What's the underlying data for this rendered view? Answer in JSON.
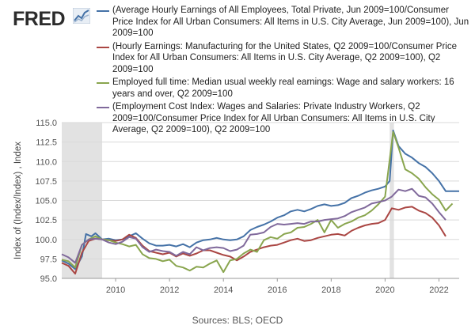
{
  "brand": {
    "name": "FRED",
    "logo_icon": "fred-chart-logo-icon"
  },
  "source": "Sources: BLS; OECD",
  "chart_data": {
    "type": "line",
    "title": "",
    "xlabel": "",
    "ylabel": "Index of (Index/Index) , Index",
    "xlim": [
      2008.0,
      2022.75
    ],
    "ylim": [
      95.0,
      115.0
    ],
    "yticks": [
      "95.0",
      "97.5",
      "100.0",
      "102.5",
      "105.0",
      "107.5",
      "110.0",
      "112.5",
      "115.0"
    ],
    "xticks": [
      "2010",
      "2012",
      "2014",
      "2016",
      "2018",
      "2020",
      "2022"
    ],
    "grid": true,
    "legend_position": "top",
    "recessions": [
      [
        2008.0,
        2009.5
      ],
      [
        2020.17,
        2020.33
      ]
    ],
    "series": [
      {
        "name": "(Average Hourly Earnings of All Employees, Total Private, Jun 2009=100/Consumer Price Index for All Urban Consumers: All Items in U.S. City Average, Jun 2009=100), Jun 2009=100",
        "color": "#4572a7",
        "points": [
          [
            2008.0,
            97.3
          ],
          [
            2008.25,
            96.9
          ],
          [
            2008.5,
            96.2
          ],
          [
            2008.75,
            97.8
          ],
          [
            2008.9,
            100.7
          ],
          [
            2009.1,
            100.4
          ],
          [
            2009.25,
            100.8
          ],
          [
            2009.5,
            100.0
          ],
          [
            2009.75,
            100.1
          ],
          [
            2010.0,
            99.9
          ],
          [
            2010.25,
            100.0
          ],
          [
            2010.5,
            100.4
          ],
          [
            2010.75,
            100.8
          ],
          [
            2011.0,
            100.1
          ],
          [
            2011.25,
            99.5
          ],
          [
            2011.5,
            99.2
          ],
          [
            2011.75,
            99.2
          ],
          [
            2012.0,
            99.3
          ],
          [
            2012.25,
            99.1
          ],
          [
            2012.5,
            99.4
          ],
          [
            2012.75,
            99.0
          ],
          [
            2013.0,
            99.6
          ],
          [
            2013.25,
            99.9
          ],
          [
            2013.5,
            100.0
          ],
          [
            2013.75,
            100.2
          ],
          [
            2014.0,
            100.0
          ],
          [
            2014.25,
            99.9
          ],
          [
            2014.5,
            100.0
          ],
          [
            2014.75,
            100.4
          ],
          [
            2015.0,
            101.2
          ],
          [
            2015.25,
            101.6
          ],
          [
            2015.5,
            101.9
          ],
          [
            2015.75,
            102.3
          ],
          [
            2016.0,
            102.8
          ],
          [
            2016.25,
            103.1
          ],
          [
            2016.5,
            103.6
          ],
          [
            2016.75,
            103.8
          ],
          [
            2017.0,
            103.6
          ],
          [
            2017.25,
            103.9
          ],
          [
            2017.5,
            104.3
          ],
          [
            2017.75,
            104.5
          ],
          [
            2018.0,
            104.3
          ],
          [
            2018.25,
            104.4
          ],
          [
            2018.5,
            104.7
          ],
          [
            2018.75,
            105.3
          ],
          [
            2019.0,
            105.6
          ],
          [
            2019.25,
            106.0
          ],
          [
            2019.5,
            106.3
          ],
          [
            2019.75,
            106.5
          ],
          [
            2020.0,
            106.8
          ],
          [
            2020.17,
            107.5
          ],
          [
            2020.3,
            114.0
          ],
          [
            2020.5,
            112.0
          ],
          [
            2020.75,
            111.0
          ],
          [
            2021.0,
            110.5
          ],
          [
            2021.25,
            109.8
          ],
          [
            2021.5,
            109.3
          ],
          [
            2021.75,
            108.5
          ],
          [
            2022.0,
            107.5
          ],
          [
            2022.25,
            106.2
          ],
          [
            2022.5,
            106.2
          ],
          [
            2022.75,
            106.2
          ]
        ]
      },
      {
        "name": "(Hourly Earnings: Manufacturing for the United States, Q2 2009=100/Consumer Price Index for All Urban Consumers: All Items in U.S. City Average, Q2 2009=100), Q2 2009=100",
        "color": "#aa4643",
        "points": [
          [
            2008.0,
            97.0
          ],
          [
            2008.25,
            96.6
          ],
          [
            2008.5,
            95.6
          ],
          [
            2008.75,
            98.3
          ],
          [
            2009.0,
            99.8
          ],
          [
            2009.25,
            100.1
          ],
          [
            2009.5,
            100.0
          ],
          [
            2009.75,
            99.9
          ],
          [
            2010.0,
            99.8
          ],
          [
            2010.25,
            100.0
          ],
          [
            2010.5,
            100.6
          ],
          [
            2010.75,
            100.2
          ],
          [
            2011.0,
            99.2
          ],
          [
            2011.25,
            98.5
          ],
          [
            2011.5,
            98.3
          ],
          [
            2011.75,
            98.1
          ],
          [
            2012.0,
            98.3
          ],
          [
            2012.25,
            97.8
          ],
          [
            2012.5,
            98.2
          ],
          [
            2012.75,
            97.9
          ],
          [
            2013.0,
            98.2
          ],
          [
            2013.25,
            98.6
          ],
          [
            2013.5,
            98.6
          ],
          [
            2013.75,
            98.3
          ],
          [
            2014.0,
            98.0
          ],
          [
            2014.25,
            97.8
          ],
          [
            2014.5,
            97.3
          ],
          [
            2014.75,
            97.8
          ],
          [
            2015.0,
            98.4
          ],
          [
            2015.25,
            98.7
          ],
          [
            2015.5,
            99.0
          ],
          [
            2015.75,
            99.2
          ],
          [
            2016.0,
            99.3
          ],
          [
            2016.25,
            99.6
          ],
          [
            2016.5,
            99.9
          ],
          [
            2016.75,
            100.1
          ],
          [
            2017.0,
            99.8
          ],
          [
            2017.25,
            99.9
          ],
          [
            2017.5,
            100.2
          ],
          [
            2017.75,
            100.4
          ],
          [
            2018.0,
            100.6
          ],
          [
            2018.25,
            100.7
          ],
          [
            2018.5,
            100.5
          ],
          [
            2018.75,
            101.1
          ],
          [
            2019.0,
            101.5
          ],
          [
            2019.25,
            101.8
          ],
          [
            2019.5,
            102.0
          ],
          [
            2019.75,
            102.1
          ],
          [
            2020.0,
            102.5
          ],
          [
            2020.25,
            104.0
          ],
          [
            2020.5,
            103.8
          ],
          [
            2020.75,
            104.1
          ],
          [
            2021.0,
            104.2
          ],
          [
            2021.25,
            103.7
          ],
          [
            2021.5,
            103.4
          ],
          [
            2021.75,
            102.8
          ],
          [
            2022.0,
            101.8
          ],
          [
            2022.25,
            100.4
          ]
        ]
      },
      {
        "name": "Employed full time: Median usual weekly real earnings: Wage and salary workers: 16 years and over, Q2 2009=100",
        "color": "#89a54e",
        "points": [
          [
            2008.0,
            97.4
          ],
          [
            2008.25,
            97.2
          ],
          [
            2008.5,
            96.4
          ],
          [
            2008.75,
            99.3
          ],
          [
            2009.0,
            100.0
          ],
          [
            2009.25,
            100.4
          ],
          [
            2009.5,
            100.0
          ],
          [
            2009.75,
            99.9
          ],
          [
            2010.0,
            99.6
          ],
          [
            2010.25,
            99.4
          ],
          [
            2010.5,
            99.1
          ],
          [
            2010.75,
            99.3
          ],
          [
            2011.0,
            98.1
          ],
          [
            2011.25,
            97.6
          ],
          [
            2011.5,
            97.5
          ],
          [
            2011.75,
            97.2
          ],
          [
            2012.0,
            97.4
          ],
          [
            2012.25,
            96.6
          ],
          [
            2012.5,
            96.4
          ],
          [
            2012.75,
            96.0
          ],
          [
            2013.0,
            96.5
          ],
          [
            2013.25,
            96.4
          ],
          [
            2013.5,
            96.9
          ],
          [
            2013.75,
            97.3
          ],
          [
            2014.0,
            95.8
          ],
          [
            2014.25,
            97.3
          ],
          [
            2014.5,
            97.5
          ],
          [
            2014.75,
            98.2
          ],
          [
            2015.0,
            98.7
          ],
          [
            2015.25,
            98.4
          ],
          [
            2015.5,
            99.9
          ],
          [
            2015.75,
            100.3
          ],
          [
            2016.0,
            100.1
          ],
          [
            2016.25,
            100.7
          ],
          [
            2016.5,
            100.9
          ],
          [
            2016.75,
            101.5
          ],
          [
            2017.0,
            101.6
          ],
          [
            2017.25,
            102.0
          ],
          [
            2017.5,
            102.5
          ],
          [
            2017.75,
            100.9
          ],
          [
            2018.0,
            102.5
          ],
          [
            2018.25,
            101.5
          ],
          [
            2018.5,
            102.0
          ],
          [
            2018.75,
            102.3
          ],
          [
            2019.0,
            102.8
          ],
          [
            2019.25,
            103.1
          ],
          [
            2019.5,
            103.7
          ],
          [
            2019.75,
            104.5
          ],
          [
            2020.0,
            105.5
          ],
          [
            2020.3,
            113.8
          ],
          [
            2020.5,
            111.8
          ],
          [
            2020.75,
            109.0
          ],
          [
            2021.0,
            108.5
          ],
          [
            2021.25,
            107.8
          ],
          [
            2021.5,
            106.7
          ],
          [
            2021.75,
            105.8
          ],
          [
            2022.0,
            105.1
          ],
          [
            2022.25,
            103.7
          ],
          [
            2022.5,
            104.6
          ]
        ]
      },
      {
        "name": "(Employment Cost Index: Wages and Salaries: Private Industry Workers, Q2 2009=100/Consumer Price Index for All Urban Consumers: All Items in U.S. City Average, Q2 2009=100), Q2 2009=100",
        "color": "#80699b",
        "points": [
          [
            2008.0,
            98.1
          ],
          [
            2008.25,
            97.7
          ],
          [
            2008.5,
            97.0
          ],
          [
            2008.75,
            99.3
          ],
          [
            2009.0,
            100.0
          ],
          [
            2009.25,
            100.1
          ],
          [
            2009.5,
            100.0
          ],
          [
            2009.75,
            99.6
          ],
          [
            2010.0,
            99.4
          ],
          [
            2010.25,
            99.7
          ],
          [
            2010.5,
            100.3
          ],
          [
            2010.75,
            100.1
          ],
          [
            2011.0,
            99.0
          ],
          [
            2011.25,
            98.4
          ],
          [
            2011.5,
            98.7
          ],
          [
            2011.75,
            98.5
          ],
          [
            2012.0,
            98.4
          ],
          [
            2012.25,
            97.9
          ],
          [
            2012.5,
            98.4
          ],
          [
            2012.75,
            98.1
          ],
          [
            2013.0,
            99.0
          ],
          [
            2013.25,
            98.6
          ],
          [
            2013.5,
            98.9
          ],
          [
            2013.75,
            99.0
          ],
          [
            2014.0,
            98.9
          ],
          [
            2014.25,
            98.5
          ],
          [
            2014.5,
            98.7
          ],
          [
            2014.75,
            99.2
          ],
          [
            2015.0,
            100.6
          ],
          [
            2015.25,
            100.7
          ],
          [
            2015.5,
            100.9
          ],
          [
            2015.75,
            101.6
          ],
          [
            2016.0,
            102.0
          ],
          [
            2016.25,
            101.9
          ],
          [
            2016.5,
            102.0
          ],
          [
            2016.75,
            102.1
          ],
          [
            2017.0,
            102.0
          ],
          [
            2017.25,
            102.3
          ],
          [
            2017.5,
            102.3
          ],
          [
            2017.75,
            102.5
          ],
          [
            2018.0,
            102.6
          ],
          [
            2018.25,
            102.7
          ],
          [
            2018.5,
            103.0
          ],
          [
            2018.75,
            103.5
          ],
          [
            2019.0,
            103.8
          ],
          [
            2019.25,
            104.1
          ],
          [
            2019.5,
            104.6
          ],
          [
            2019.75,
            104.8
          ],
          [
            2020.0,
            105.0
          ],
          [
            2020.25,
            105.5
          ],
          [
            2020.5,
            106.4
          ],
          [
            2020.75,
            106.2
          ],
          [
            2021.0,
            106.5
          ],
          [
            2021.25,
            105.6
          ],
          [
            2021.5,
            105.4
          ],
          [
            2021.75,
            104.6
          ],
          [
            2022.0,
            103.5
          ],
          [
            2022.25,
            102.5
          ]
        ]
      }
    ]
  }
}
